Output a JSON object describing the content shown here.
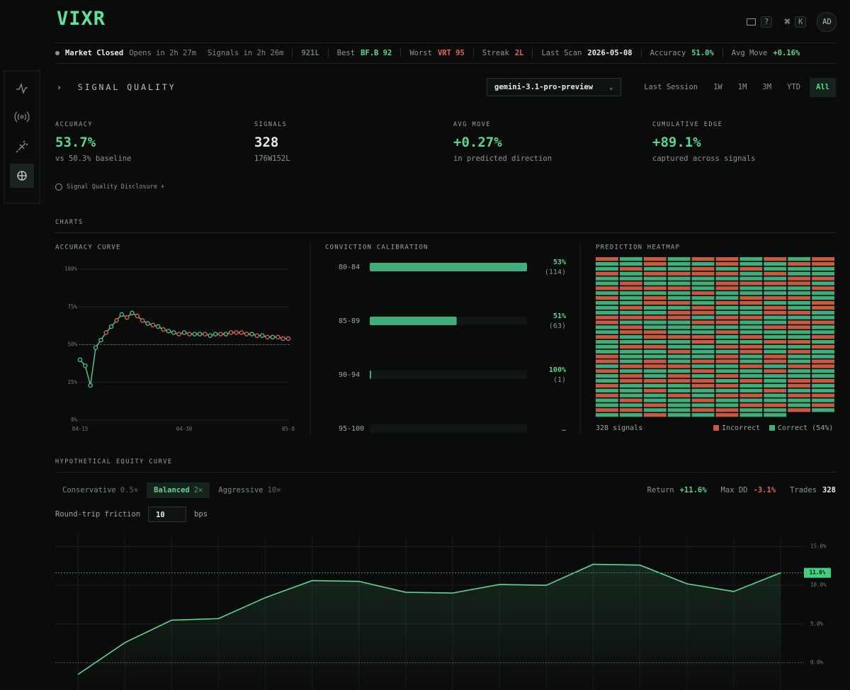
{
  "header": {
    "logo": "VIXR",
    "help_key": "?",
    "cmd_key": "⌘",
    "k_key": "K",
    "avatar": "AD"
  },
  "ticker": {
    "status": "Market Closed",
    "opens": "Opens in 2h 27m",
    "signals": "Signals in 2h 26m",
    "items": [
      {
        "value": "921L",
        "color": "#6f7a74"
      },
      {
        "label": "Best",
        "value": "BF.B 92",
        "color": "#5ad690"
      },
      {
        "label": "Worst",
        "value": "VRT 95",
        "color": "#e0664f"
      },
      {
        "label": "Streak",
        "value": "2L",
        "color": "#e0664f"
      },
      {
        "label": "Last Scan",
        "value": "2026-05-08",
        "color": "#e6ebe8"
      },
      {
        "label": "Accuracy",
        "value": "51.0%",
        "color": "#5ad690"
      },
      {
        "label": "Avg Move",
        "value": "+0.16%",
        "color": "#5ad690"
      }
    ]
  },
  "signal_quality": {
    "title": "SIGNAL QUALITY",
    "model": "gemini-3.1-pro-preview",
    "ranges": [
      "Last Session",
      "1W",
      "1M",
      "3M",
      "YTD",
      "All"
    ],
    "active_range": 5,
    "stats": [
      {
        "label": "ACCURACY",
        "value": "53.7%",
        "sub": "vs 50.3% baseline",
        "color": "#5ad690"
      },
      {
        "label": "SIGNALS",
        "value": "328",
        "sub": "176W152L",
        "color": "#e6ebe8"
      },
      {
        "label": "AVG MOVE",
        "value": "+0.27%",
        "sub": "in predicted direction",
        "color": "#5ad690"
      },
      {
        "label": "CUMULATIVE EDGE",
        "value": "+89.1%",
        "sub": "captured across signals",
        "color": "#5ad690"
      }
    ],
    "disclosure": "Signal Quality Disclosure +"
  },
  "charts_heading": "CHARTS",
  "chart_data": [
    {
      "type": "line",
      "title": "ACCURACY CURVE",
      "categories": [
        "04-15",
        null,
        null,
        null,
        null,
        null,
        null,
        null,
        null,
        null,
        null,
        null,
        null,
        null,
        null,
        null,
        null,
        null,
        null,
        null,
        "04-30",
        null,
        null,
        null,
        null,
        null,
        null,
        null,
        null,
        null,
        null,
        null,
        null,
        null,
        null,
        null,
        null,
        null,
        null,
        null,
        "05-0"
      ],
      "values": [
        40,
        36,
        23,
        48,
        53,
        58,
        62,
        66,
        70,
        68,
        71,
        69,
        66,
        64,
        63,
        62,
        60,
        59,
        58,
        57,
        58,
        57,
        57,
        57,
        57,
        56,
        57,
        57,
        57,
        58,
        58,
        58,
        57,
        57,
        56,
        56,
        55,
        55,
        55,
        54,
        54
      ],
      "color": "#4fc48b",
      "point_colors": [
        "#4fc48b",
        "#4fc48b",
        "#4fc48b",
        "#4fc48b",
        "#4fc48b",
        "#e0664f",
        "#4fc48b",
        "#e0664f",
        "#4fc48b",
        "#e0664f",
        "#4fc48b",
        "#e0664f",
        "#e0664f",
        "#4fc48b",
        "#e0664f",
        "#4fc48b",
        "#e0664f",
        "#4fc48b",
        "#4fc48b",
        "#e0664f",
        "#4fc48b",
        "#e0664f",
        "#4fc48b",
        "#4fc48b",
        "#e0664f",
        "#4fc48b",
        "#4fc48b",
        "#e0664f",
        "#4fc48b",
        "#e0664f",
        "#e0664f",
        "#e0664f",
        "#e0664f",
        "#4fc48b",
        "#e0664f",
        "#4fc48b",
        "#e0664f",
        "#4fc48b",
        "#e0664f",
        "#e0664f",
        "#e0664f"
      ],
      "ylim": [
        0,
        100
      ],
      "yticks": [
        {
          "value": 0,
          "label": "0%"
        },
        {
          "value": 25,
          "label": "25%"
        },
        {
          "value": 50,
          "label": "50%"
        },
        {
          "value": 75,
          "label": "75%"
        },
        {
          "value": 100,
          "label": "100%"
        }
      ],
      "reference_line": 50,
      "grid": true
    },
    {
      "type": "hbar",
      "title": "CONVICTION CALIBRATION",
      "categories": [
        "80-84",
        "85-89",
        "90-94",
        "95-100"
      ],
      "values": [
        114,
        63,
        1,
        0
      ],
      "value_labels": [
        "(114)",
        "(63)",
        "(1)",
        null
      ],
      "xlim": [
        0,
        114
      ],
      "color": "#3fae7a",
      "accuracy": {
        "values": [
          53,
          51,
          100,
          null
        ],
        "value_labels": [
          "53%",
          "51%",
          "100%",
          "—"
        ]
      }
    },
    {
      "type": "heatmap",
      "title": "PREDICTION HEATMAP",
      "columns": [
        "ICCICCICICCCIICCICCCIICICCICICCIC",
        "CCICCIICCCICICIICCICCCICIICCCICIC",
        "IICICCICIICCICCIICICCIICCICICCICI",
        "CCCICCICCICIICCCICCICCICIICCICCCC",
        "ICIICCCICCIICICCIICCCICICIICCICIC",
        "IICICIICCICCIICICCICIICCICICICCII",
        "CCICCICCIICCICCCICIICCICCICCICICC",
        "ICCICICCICIICCICCICCIICICCCICCICC",
        "CICCIICCICCICIICCICICCICCIICICCI",
        "IICCICICCIICCICCICICCIICCICCICIC"
      ],
      "colors": {
        "I": "#c85a40",
        "C": "#3fae7a"
      },
      "count_label": "328 signals",
      "legend": [
        {
          "code": "I",
          "name": "Incorrect"
        },
        {
          "code": "C",
          "name": "Correct (54%)"
        }
      ]
    },
    {
      "type": "area",
      "values": [
        -1.5,
        2.6,
        5.5,
        5.7,
        8.4,
        10.6,
        10.5,
        9.1,
        9.0,
        10.1,
        10.0,
        12.7,
        12.6,
        10.2,
        9.2,
        11.6
      ],
      "value_labels": [
        null,
        null,
        null,
        null,
        null,
        null,
        null,
        null,
        null,
        null,
        null,
        null,
        null,
        null,
        null,
        "11.6%"
      ],
      "color": "#5fd68f",
      "ylim": [
        -3.5,
        16.5
      ],
      "yticks": [
        {
          "value": 0,
          "label": "0.0%"
        },
        {
          "value": 5,
          "label": "5.0%"
        },
        {
          "value": 10,
          "label": "10.0%"
        },
        {
          "value": 15,
          "label": "15.0%"
        }
      ],
      "grid": true
    }
  ],
  "equity": {
    "title": "HYPOTHETICAL EQUITY CURVE",
    "modes": [
      {
        "name": "Conservative",
        "leverage": "0.5×"
      },
      {
        "name": "Balanced",
        "leverage": "2×"
      },
      {
        "name": "Aggressive",
        "leverage": "10×"
      }
    ],
    "active_mode": 1,
    "stats": [
      {
        "label": "Return",
        "value": "+11.6%",
        "color": "#5ad690"
      },
      {
        "label": "Max DD",
        "value": "-3.1%",
        "color": "#e0664f"
      },
      {
        "label": "Trades",
        "value": "328",
        "color": "#e6ebe8"
      }
    ],
    "friction_label": "Round-trip friction",
    "friction": "10",
    "friction_unit": "bps"
  }
}
